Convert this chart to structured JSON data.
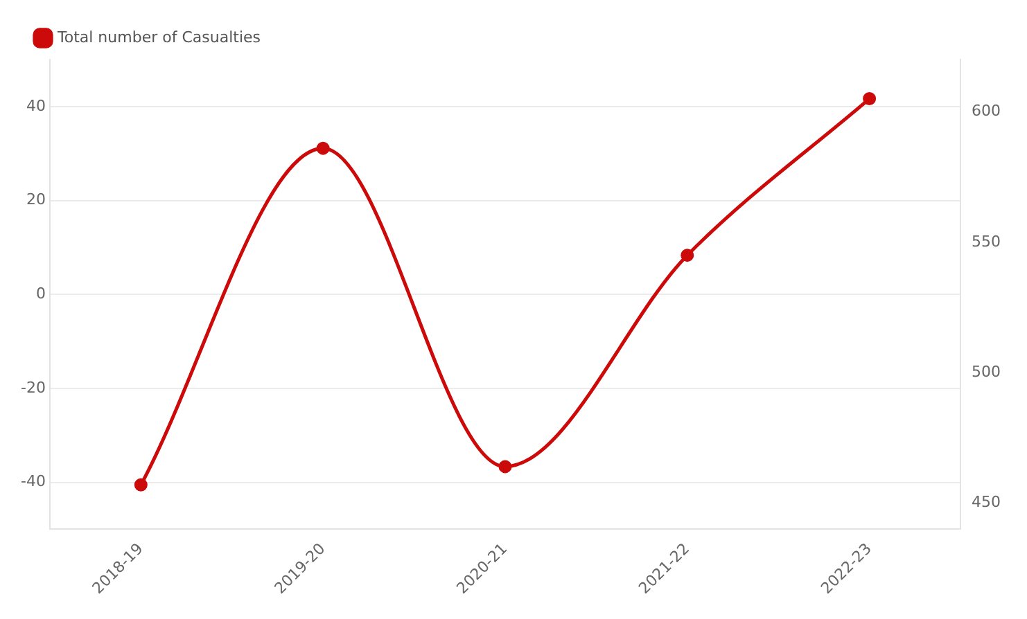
{
  "chart_data": {
    "type": "line",
    "categories": [
      "2018-19",
      "2019-20",
      "2020-21",
      "2021-22",
      "2022-23"
    ],
    "series": [
      {
        "name": "Total number of Casualties",
        "color": "#cc0a0a",
        "axis": "y2",
        "values": [
          457,
          586,
          464,
          545,
          605
        ]
      }
    ],
    "ylim": [
      -50,
      50
    ],
    "yticks": [
      -40,
      -20,
      0,
      20,
      40
    ],
    "y2lim": [
      440,
      620
    ],
    "y2ticks": [
      450,
      500,
      550,
      600
    ],
    "grid": "y",
    "legend": "top left",
    "marker": "circle",
    "line_style": "solid"
  }
}
